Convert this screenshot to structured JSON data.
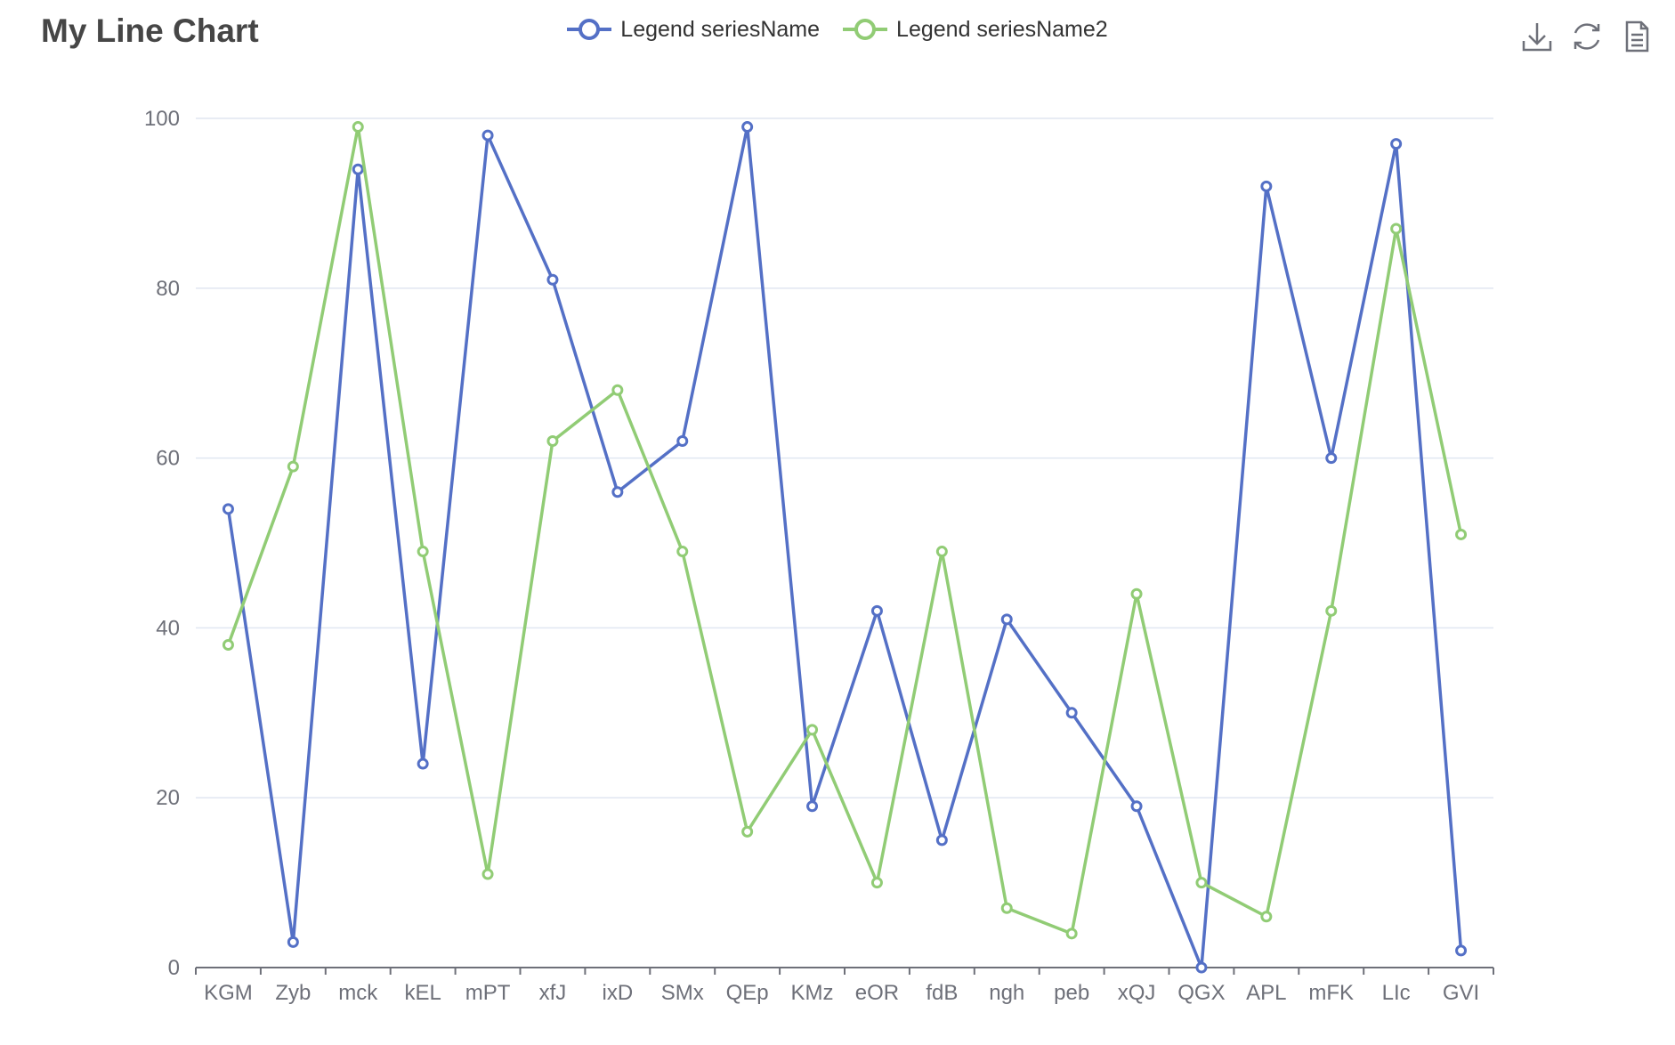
{
  "title": "My Line Chart",
  "toolbox": {
    "save_icon": "download-icon",
    "restore_icon": "refresh-icon",
    "data_view_icon": "document-icon"
  },
  "colors": {
    "series1": "#5470c6",
    "series2": "#91cc75",
    "grid": "#e0e6f1",
    "axis": "#6e7079"
  },
  "chart_data": {
    "type": "line",
    "title": "My Line Chart",
    "categories": [
      "KGM",
      "Zyb",
      "mck",
      "kEL",
      "mPT",
      "xfJ",
      "ixD",
      "SMx",
      "QEp",
      "KMz",
      "eOR",
      "fdB",
      "ngh",
      "peb",
      "xQJ",
      "QGX",
      "APL",
      "mFK",
      "LIc",
      "GVI"
    ],
    "y_ticks": [
      0,
      20,
      40,
      60,
      80,
      100
    ],
    "ylim": [
      0,
      100
    ],
    "xlabel": "",
    "ylabel": "",
    "grid": true,
    "legend_position": "top-center",
    "series": [
      {
        "name": "Legend seriesName",
        "color": "#5470c6",
        "values": [
          54,
          3,
          94,
          24,
          98,
          81,
          56,
          62,
          99,
          19,
          42,
          15,
          41,
          30,
          19,
          0,
          92,
          60,
          97,
          2
        ]
      },
      {
        "name": "Legend seriesName2",
        "color": "#91cc75",
        "values": [
          38,
          59,
          99,
          49,
          11,
          62,
          68,
          49,
          16,
          28,
          10,
          49,
          7,
          4,
          44,
          10,
          6,
          42,
          87,
          51
        ]
      }
    ]
  }
}
